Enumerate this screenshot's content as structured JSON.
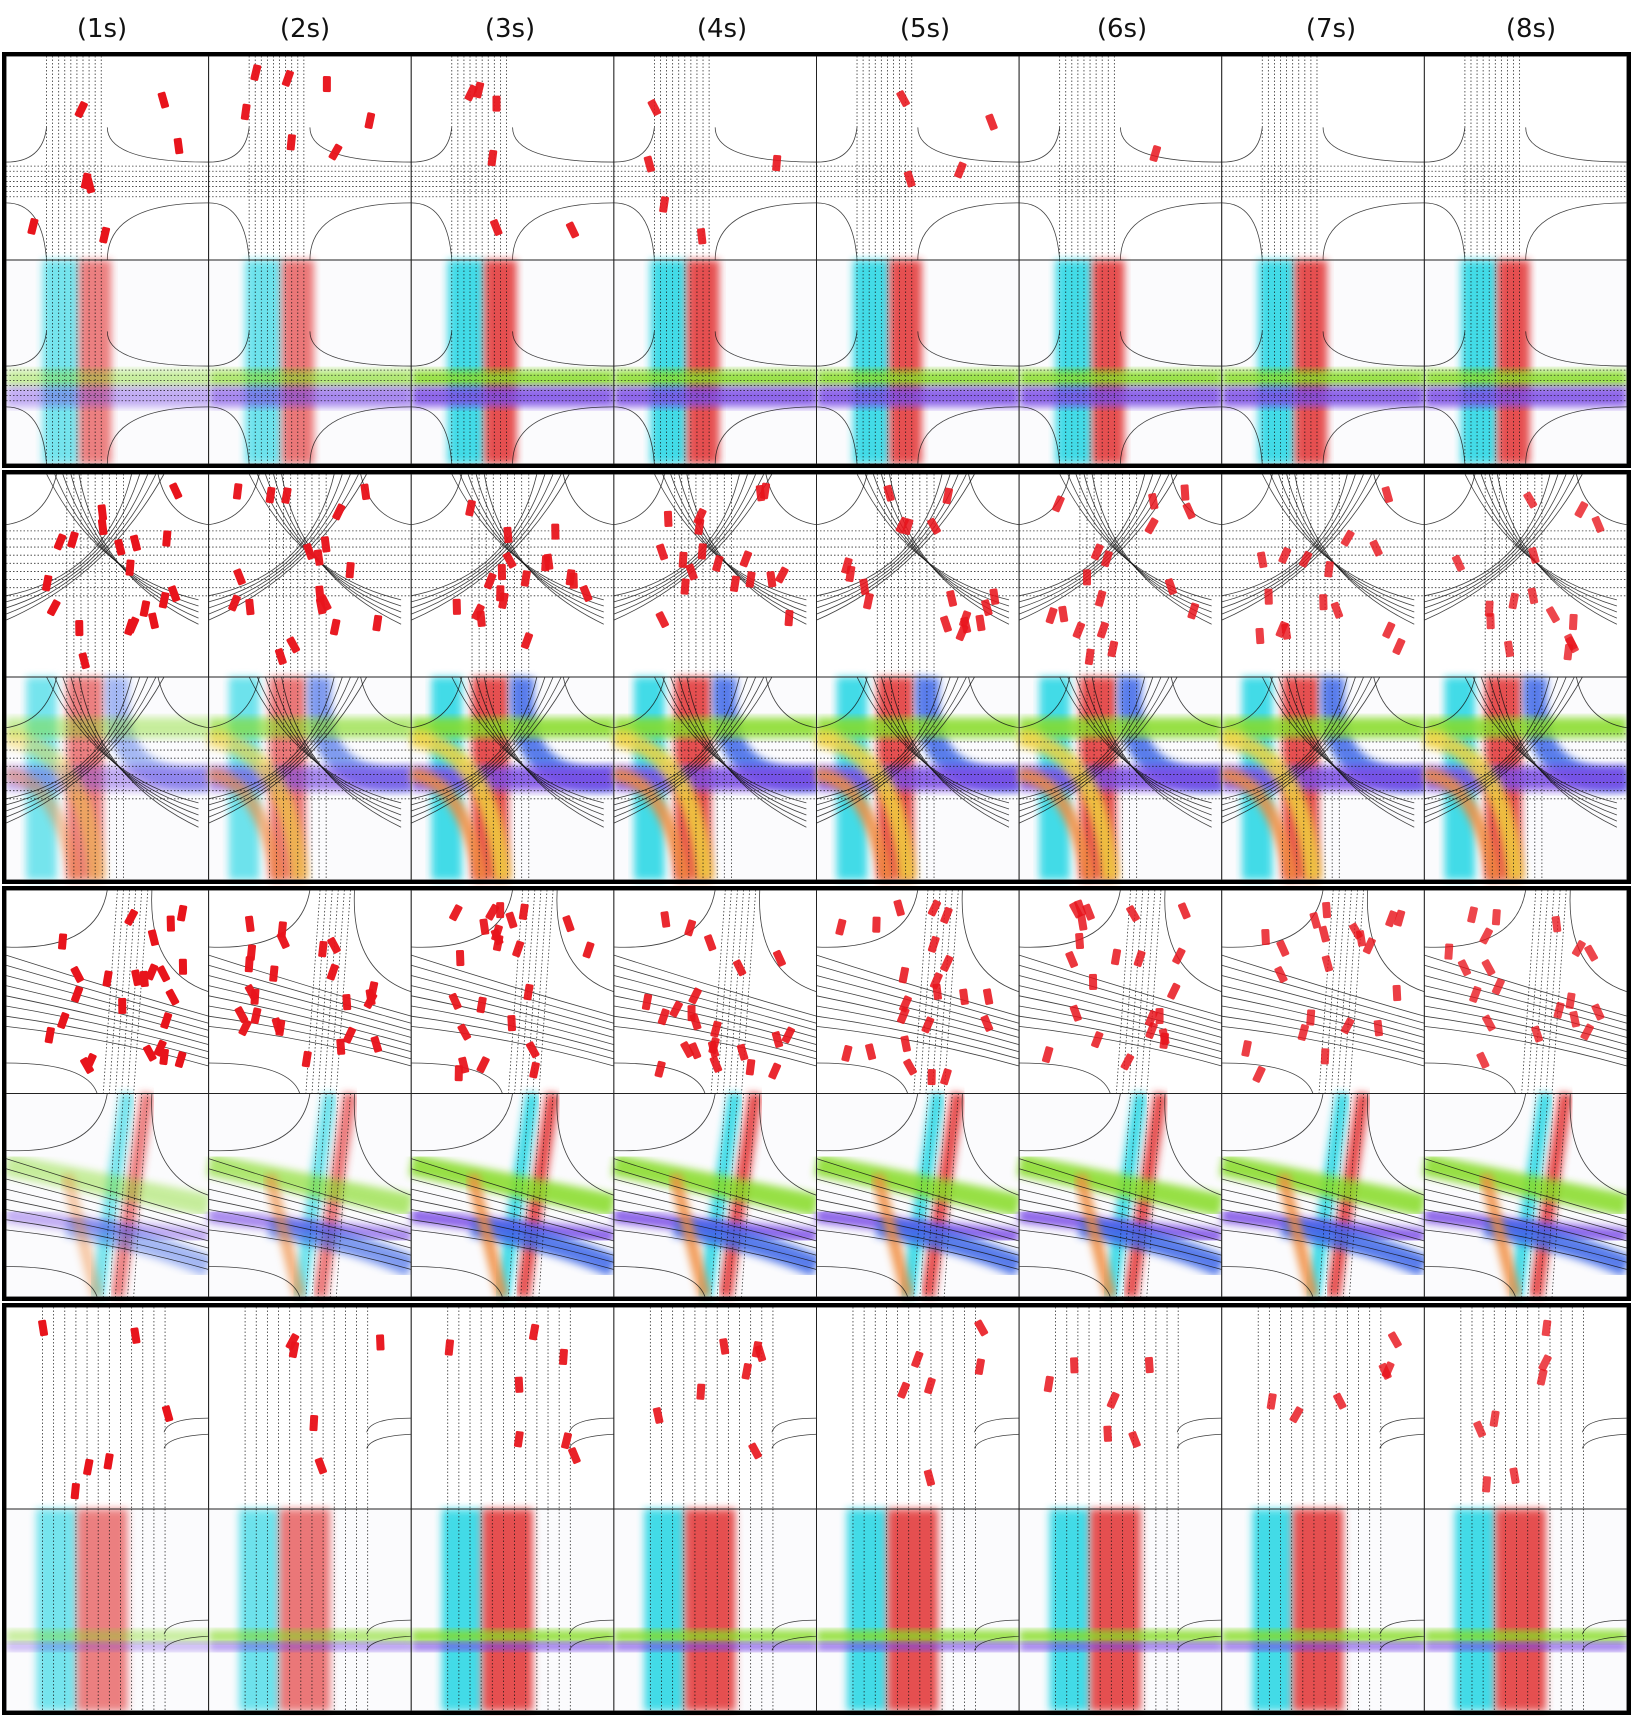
{
  "colors": {
    "vehicle": "#e8141c",
    "flow_red": "#e23232",
    "flow_cyan": "#22d6e4",
    "flow_green": "#86dc28",
    "flow_purple": "#7a4ce6",
    "flow_blue": "#3c68e8",
    "flow_yellow": "#f0d23c",
    "flow_orange": "#f08c3c",
    "lane_line": "#111111",
    "frame": "#000000"
  },
  "time_labels": [
    "(1s)",
    "(2s)",
    "(3s)",
    "(4s)",
    "(5s)",
    "(6s)",
    "(7s)",
    "(8s)"
  ],
  "row_content": [
    "vehicle-occupancy",
    "flow-field"
  ],
  "scenarios": [
    {
      "layout": "four-way-grid",
      "flows": [
        "cyan",
        "red",
        "green",
        "purple"
      ],
      "vehicles_per_step": [
        7,
        7,
        6,
        5,
        4,
        1,
        0,
        0
      ]
    },
    {
      "layout": "complex-intersection",
      "flows": [
        "red",
        "cyan",
        "blue",
        "purple",
        "green",
        "yellow",
        "orange"
      ],
      "vehicles_per_step": [
        19,
        19,
        18,
        18,
        17,
        17,
        15,
        15
      ]
    },
    {
      "layout": "skewed-intersection",
      "flows": [
        "red",
        "cyan",
        "green",
        "purple",
        "blue",
        "orange"
      ],
      "vehicles_per_step": [
        24,
        24,
        23,
        23,
        22,
        22,
        20,
        19
      ]
    },
    {
      "layout": "straight-road-side-street",
      "flows": [
        "cyan",
        "red",
        "green",
        "purple"
      ],
      "vehicles_per_step": [
        6,
        5,
        7,
        7,
        6,
        6,
        6,
        7
      ]
    }
  ]
}
